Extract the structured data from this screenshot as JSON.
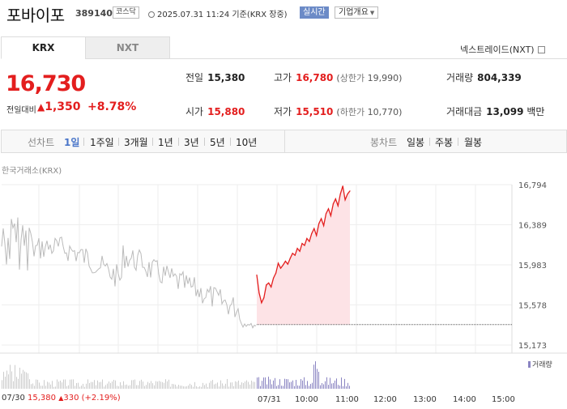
{
  "header": {
    "company": "포바이포",
    "code": "389140",
    "market_badge": "코스닥",
    "datetime": "2025.07.31 11:24 기준(KRX 장중)",
    "live_badge": "실시간",
    "overview_badge": "기업개요"
  },
  "tabs": [
    {
      "label": "KRX",
      "active": true
    },
    {
      "label": "NXT",
      "active": false
    }
  ],
  "nxt_link": "넥스트레이드(NXT)",
  "quote": {
    "price": "16,730",
    "change_label": "전일대비",
    "change": "1,350",
    "change_pct": "+8.78%"
  },
  "stats": {
    "prev_label": "전일",
    "prev": "15,380",
    "open_label": "시가",
    "open": "15,880",
    "high_label": "고가",
    "high": "16,780",
    "upper_label": "상한가",
    "upper": "19,990",
    "low_label": "저가",
    "low": "15,510",
    "lower_label": "하한가",
    "lower": "10,770",
    "volume_label": "거래량",
    "volume": "804,339",
    "amount_label": "거래대금",
    "amount": "13,099",
    "amount_unit": "백만"
  },
  "periods": {
    "line_label": "선차트",
    "line_options": [
      "1일",
      "1주일",
      "3개월",
      "1년",
      "3년",
      "5년",
      "10년"
    ],
    "selected": "1일",
    "candle_label": "봉차트",
    "candle_options": [
      "일봉",
      "주봉",
      "월봉"
    ]
  },
  "chart": {
    "exchange_label": "한국거래소(KRX)",
    "volume_legend": "거래량",
    "prev_session": {
      "date": "07/30",
      "close": "15,380",
      "change": "330",
      "change_pct": "(+2.19%)"
    }
  },
  "chart_data": {
    "type": "line",
    "y_ticks": [
      "16,794",
      "16,389",
      "15,983",
      "15,578",
      "15,173"
    ],
    "ylim": [
      15173,
      16794
    ],
    "x_ticks": [
      "07/30",
      "07/31",
      "10:00",
      "11:00",
      "12:00",
      "13:00",
      "14:00",
      "15:00"
    ],
    "reference_price": 15380,
    "colors": {
      "up": "#e31e1e",
      "prev": "#bbbbbb",
      "fill": "#fde3e6",
      "volume": "#8a84c2"
    },
    "series": [
      {
        "values": [
          15880,
          15700,
          15600,
          15650,
          15780,
          15800,
          15760,
          15850,
          15900,
          16000,
          15950,
          15980,
          16020,
          15990,
          16050,
          16100,
          16080,
          16150,
          16120,
          16200,
          16180,
          16250,
          16220,
          16300,
          16350,
          16280,
          16400,
          16450,
          16380,
          16500,
          16550,
          16480,
          16600,
          16650,
          16580,
          16700,
          16780,
          16640,
          16700,
          16730
        ]
      }
    ]
  }
}
